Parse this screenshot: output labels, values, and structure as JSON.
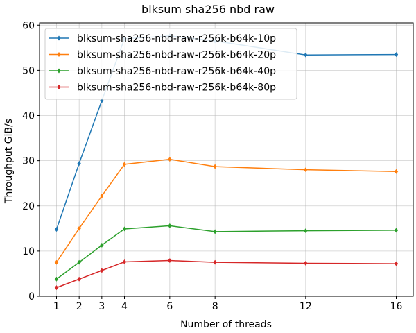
{
  "chart_data": {
    "type": "line",
    "title": "blksum sha256 nbd raw",
    "xlabel": "Number of threads",
    "ylabel": "Throughput GiB/s",
    "x": [
      1,
      2,
      3,
      4,
      6,
      8,
      12,
      16
    ],
    "xlim": [
      0.25,
      16.75
    ],
    "ylim": [
      0,
      60.5
    ],
    "xticks": [
      1,
      2,
      3,
      4,
      6,
      8,
      12,
      16
    ],
    "yticks": [
      0,
      10,
      20,
      30,
      40,
      50,
      60
    ],
    "grid": true,
    "legend_position": "top-left",
    "series": [
      {
        "name": "blksum-sha256-nbd-raw-r256k-b64k-10p",
        "color": "#1f77b4",
        "values": [
          14.8,
          29.4,
          43.3,
          57.0,
          57.6,
          56.5,
          53.4,
          53.5
        ]
      },
      {
        "name": "blksum-sha256-nbd-raw-r256k-b64k-20p",
        "color": "#ff7f0e",
        "values": [
          7.5,
          15.0,
          22.2,
          29.2,
          30.3,
          28.7,
          28.0,
          27.6
        ]
      },
      {
        "name": "blksum-sha256-nbd-raw-r256k-b64k-40p",
        "color": "#2ca02c",
        "values": [
          3.8,
          7.5,
          11.3,
          14.9,
          15.6,
          14.3,
          14.5,
          14.6
        ]
      },
      {
        "name": "blksum-sha256-nbd-raw-r256k-b64k-80p",
        "color": "#d62728",
        "values": [
          1.9,
          3.8,
          5.7,
          7.6,
          7.9,
          7.5,
          7.3,
          7.2
        ]
      }
    ]
  }
}
